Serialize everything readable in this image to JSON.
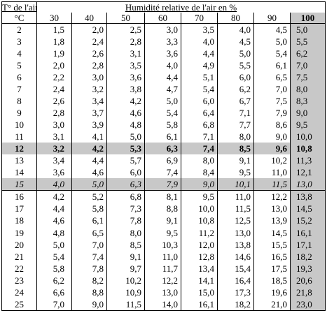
{
  "table": {
    "corner_label_top": "T° de l'air",
    "corner_label_bottom": "°C",
    "humidity_header": "Humidité relative de l'air en %",
    "columns": [
      "30",
      "40",
      "50",
      "60",
      "70",
      "80",
      "90",
      "100"
    ],
    "rows": [
      {
        "t": "2",
        "v": [
          "1,5",
          "2,0",
          "2,5",
          "3,0",
          "3,5",
          "4,0",
          "4,5",
          "5,0"
        ]
      },
      {
        "t": "3",
        "v": [
          "1,8",
          "2,4",
          "2,8",
          "3,3",
          "4,0",
          "4,5",
          "5,0",
          "5,5"
        ]
      },
      {
        "t": "4",
        "v": [
          "1,9",
          "2,6",
          "3,1",
          "3,6",
          "4,4",
          "5,0",
          "5,4",
          "6,2"
        ]
      },
      {
        "t": "5",
        "v": [
          "2,0",
          "2,8",
          "3,5",
          "4,0",
          "4,9",
          "5,5",
          "6,1",
          "7,0"
        ]
      },
      {
        "t": "6",
        "v": [
          "2,2",
          "3,0",
          "3,6",
          "4,4",
          "5,1",
          "6,0",
          "6,5",
          "7,5"
        ]
      },
      {
        "t": "7",
        "v": [
          "2,4",
          "3,2",
          "3,8",
          "4,7",
          "5,4",
          "6,2",
          "7,0",
          "8,0"
        ]
      },
      {
        "t": "8",
        "v": [
          "2,6",
          "3,4",
          "4,2",
          "5,0",
          "6,0",
          "6,7",
          "7,5",
          "8,3"
        ]
      },
      {
        "t": "9",
        "v": [
          "2,8",
          "3,7",
          "4,6",
          "5,4",
          "6,4",
          "7,1",
          "7,9",
          "9,0"
        ]
      },
      {
        "t": "10",
        "v": [
          "3,0",
          "3,9",
          "4,8",
          "5,8",
          "6,8",
          "7,7",
          "8,6",
          "9,5"
        ]
      },
      {
        "t": "11",
        "v": [
          "3,1",
          "4,1",
          "5,0",
          "6,1",
          "7,1",
          "8,0",
          "9,0",
          "10,0"
        ]
      },
      {
        "t": "12",
        "v": [
          "3,2",
          "4,2",
          "5,3",
          "6,3",
          "7,4",
          "8,5",
          "9,6",
          "10,8"
        ]
      },
      {
        "t": "13",
        "v": [
          "3,4",
          "4,4",
          "5,7",
          "6,9",
          "8,0",
          "9,1",
          "10,2",
          "11,3"
        ]
      },
      {
        "t": "14",
        "v": [
          "3,6",
          "4,6",
          "6,0",
          "7,4",
          "8,4",
          "9,5",
          "11,0",
          "12,1"
        ]
      },
      {
        "t": "15",
        "v": [
          "4,0",
          "5,0",
          "6,3",
          "7,9",
          "9,0",
          "10,1",
          "11,5",
          "13,0"
        ]
      },
      {
        "t": "16",
        "v": [
          "4,2",
          "5,2",
          "6,8",
          "8,1",
          "9,5",
          "11,0",
          "12,2",
          "13,8"
        ]
      },
      {
        "t": "17",
        "v": [
          "4,4",
          "5,8",
          "7,3",
          "8,8",
          "10,0",
          "11,5",
          "13,0",
          "14,5"
        ]
      },
      {
        "t": "18",
        "v": [
          "4,6",
          "6,1",
          "7,8",
          "9,1",
          "10,8",
          "12,5",
          "13,9",
          "15,2"
        ]
      },
      {
        "t": "19",
        "v": [
          "4,8",
          "6,5",
          "8,0",
          "9,5",
          "11,2",
          "13,0",
          "14,5",
          "16,1"
        ]
      },
      {
        "t": "20",
        "v": [
          "5,0",
          "7,0",
          "8,5",
          "10,3",
          "12,0",
          "13,8",
          "15,5",
          "17,1"
        ]
      },
      {
        "t": "21",
        "v": [
          "5,4",
          "7,4",
          "9,1",
          "11,0",
          "12,8",
          "14,6",
          "16,5",
          "18,2"
        ]
      },
      {
        "t": "22",
        "v": [
          "5,8",
          "7,8",
          "9,7",
          "11,7",
          "13,4",
          "15,4",
          "17,5",
          "19,3"
        ]
      },
      {
        "t": "23",
        "v": [
          "6,2",
          "8,2",
          "10,2",
          "12,2",
          "14,1",
          "16,4",
          "18,5",
          "20,6"
        ]
      },
      {
        "t": "24",
        "v": [
          "6,6",
          "8,8",
          "10,9",
          "13,0",
          "15,0",
          "17,3",
          "19,6",
          "21,8"
        ]
      },
      {
        "t": "25",
        "v": [
          "7,0",
          "9,0",
          "11,5",
          "14,0",
          "16,1",
          "18,2",
          "21,0",
          "23,0"
        ]
      }
    ],
    "highlight_rows": {
      "bold": "12",
      "italic": "15"
    },
    "shade_color": "#c8c8c8"
  }
}
